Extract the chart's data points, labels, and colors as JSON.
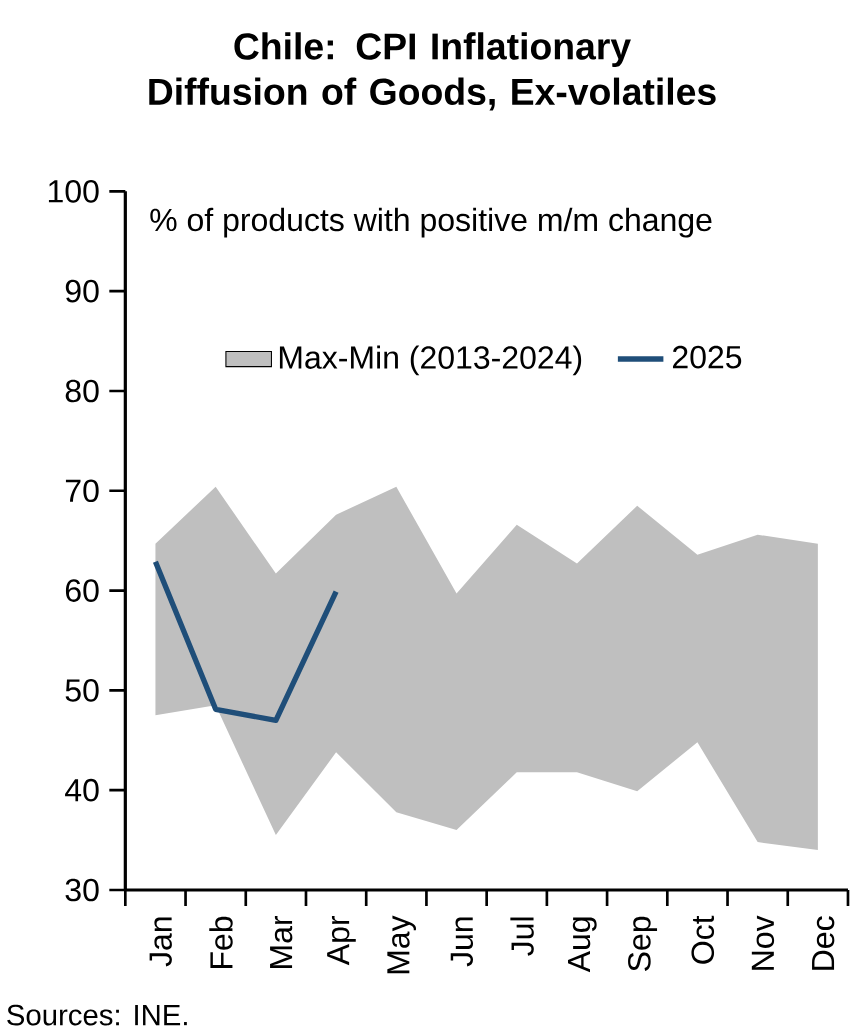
{
  "chart_data": {
    "type": "line",
    "title": "Chile: CPI Inflationary Diffusion of Goods, Ex-volatiles",
    "categories": [
      "Jan",
      "Feb",
      "Mar",
      "Apr",
      "May",
      "Jun",
      "Jul",
      "Aug",
      "Sep",
      "Oct",
      "Nov",
      "Dec"
    ],
    "series": [
      {
        "type": "area",
        "name": "Max-Min (2013-2024)",
        "color": "#bfbfbf",
        "values": [
          null,
          null,
          null,
          null,
          null,
          null,
          null,
          null,
          null,
          null,
          null,
          null
        ],
        "lower": [
          47.5,
          48.5,
          35.5,
          43.8,
          37.8,
          36,
          41.8,
          41.8,
          39.9,
          44.8,
          34.8,
          34
        ],
        "upper": [
          64.7,
          70.4,
          61.7,
          67.6,
          70.4,
          59.7,
          66.6,
          62.7,
          68.5,
          63.6,
          65.6,
          64.7
        ]
      },
      {
        "name": "2025",
        "color": "#1f4e79",
        "values": [
          62.9,
          48.1,
          47,
          59.9,
          null,
          null,
          null,
          null,
          null,
          null,
          null,
          null
        ]
      }
    ],
    "ylim": [
      30,
      100
    ],
    "yticks": [
      30,
      40,
      50,
      60,
      70,
      80,
      90,
      100
    ],
    "legend": "top",
    "grid": false,
    "annotations": [
      "% of products with positive m/m change",
      "Sources: INE."
    ]
  }
}
